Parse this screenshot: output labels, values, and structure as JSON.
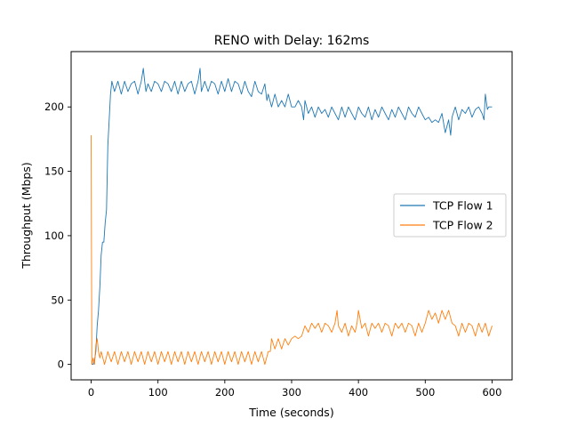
{
  "chart_data": {
    "type": "line",
    "title": "RENO with Delay: 162ms",
    "xlabel": "Time (seconds)",
    "ylabel": "Throughput (Mbps)",
    "xlim": [
      -30,
      630
    ],
    "ylim": [
      -12,
      243
    ],
    "xticks": [
      0,
      100,
      200,
      300,
      400,
      500,
      600
    ],
    "yticks": [
      0,
      50,
      100,
      150,
      200
    ],
    "grid": false,
    "legend_position": "center-right",
    "series": [
      {
        "name": "TCP Flow 1",
        "color": "#1f77b4",
        "x": [
          1,
          3,
          5,
          7,
          9,
          11,
          13,
          15,
          17,
          19,
          21,
          23,
          25,
          27,
          29,
          31,
          35,
          40,
          45,
          50,
          55,
          60,
          65,
          70,
          75,
          78,
          80,
          82,
          85,
          90,
          95,
          100,
          105,
          110,
          115,
          120,
          125,
          130,
          135,
          140,
          145,
          150,
          155,
          160,
          163,
          165,
          170,
          175,
          180,
          185,
          190,
          195,
          200,
          205,
          210,
          215,
          220,
          225,
          230,
          235,
          240,
          245,
          250,
          255,
          260,
          263,
          265,
          270,
          275,
          280,
          285,
          290,
          295,
          300,
          305,
          310,
          315,
          318,
          320,
          325,
          330,
          335,
          340,
          345,
          350,
          355,
          360,
          365,
          370,
          375,
          380,
          385,
          390,
          395,
          400,
          405,
          410,
          415,
          420,
          425,
          430,
          435,
          440,
          445,
          450,
          455,
          460,
          465,
          470,
          475,
          480,
          485,
          490,
          495,
          500,
          505,
          510,
          515,
          520,
          525,
          530,
          535,
          538,
          540,
          545,
          550,
          555,
          560,
          565,
          570,
          575,
          580,
          585,
          588,
          590,
          593,
          595,
          600
        ],
        "y": [
          0,
          0,
          3,
          10,
          30,
          42,
          60,
          85,
          95,
          95,
          110,
          120,
          170,
          190,
          210,
          220,
          212,
          220,
          210,
          220,
          212,
          218,
          220,
          210,
          220,
          230,
          220,
          212,
          218,
          212,
          220,
          218,
          212,
          220,
          218,
          212,
          220,
          210,
          220,
          212,
          218,
          220,
          210,
          220,
          230,
          212,
          220,
          212,
          220,
          218,
          210,
          220,
          212,
          222,
          212,
          220,
          218,
          210,
          220,
          212,
          208,
          220,
          212,
          210,
          218,
          205,
          210,
          200,
          210,
          200,
          205,
          200,
          210,
          200,
          200,
          205,
          200,
          190,
          205,
          195,
          200,
          192,
          200,
          195,
          198,
          192,
          200,
          195,
          190,
          200,
          192,
          200,
          195,
          190,
          200,
          195,
          192,
          200,
          190,
          198,
          192,
          200,
          195,
          190,
          198,
          192,
          200,
          195,
          190,
          200,
          195,
          192,
          200,
          195,
          190,
          192,
          188,
          190,
          188,
          195,
          180,
          190,
          178,
          192,
          200,
          190,
          198,
          195,
          200,
          192,
          198,
          200,
          195,
          190,
          210,
          198,
          200,
          200
        ]
      },
      {
        "name": "TCP Flow 2",
        "color": "#ff7f0e",
        "x": [
          0,
          1,
          2,
          3,
          5,
          7,
          9,
          11,
          13,
          15,
          20,
          25,
          30,
          35,
          40,
          45,
          50,
          55,
          60,
          65,
          70,
          75,
          80,
          85,
          90,
          95,
          100,
          105,
          110,
          115,
          120,
          125,
          130,
          135,
          140,
          145,
          150,
          155,
          160,
          165,
          170,
          175,
          180,
          185,
          190,
          195,
          200,
          205,
          210,
          215,
          220,
          225,
          230,
          235,
          240,
          245,
          250,
          255,
          260,
          265,
          268,
          270,
          275,
          280,
          285,
          290,
          295,
          300,
          305,
          310,
          315,
          320,
          325,
          330,
          335,
          340,
          345,
          350,
          355,
          360,
          365,
          368,
          370,
          375,
          380,
          385,
          390,
          395,
          398,
          400,
          405,
          410,
          415,
          420,
          425,
          430,
          435,
          440,
          445,
          450,
          455,
          460,
          465,
          470,
          475,
          480,
          485,
          490,
          495,
          500,
          505,
          510,
          515,
          520,
          525,
          530,
          535,
          540,
          545,
          550,
          555,
          560,
          565,
          570,
          575,
          580,
          585,
          590,
          595,
          600
        ],
        "y": [
          178,
          0,
          2,
          5,
          0,
          15,
          20,
          10,
          5,
          10,
          0,
          10,
          2,
          10,
          0,
          10,
          2,
          10,
          0,
          10,
          2,
          10,
          0,
          10,
          2,
          10,
          0,
          10,
          2,
          10,
          0,
          10,
          2,
          10,
          0,
          10,
          2,
          10,
          0,
          10,
          2,
          10,
          0,
          10,
          2,
          10,
          0,
          10,
          2,
          10,
          0,
          10,
          2,
          10,
          0,
          10,
          2,
          10,
          0,
          10,
          10,
          20,
          12,
          20,
          12,
          20,
          15,
          20,
          22,
          20,
          22,
          30,
          25,
          32,
          28,
          32,
          25,
          32,
          30,
          25,
          32,
          42,
          30,
          25,
          32,
          22,
          30,
          25,
          32,
          42,
          28,
          32,
          22,
          32,
          28,
          32,
          25,
          32,
          30,
          22,
          32,
          28,
          32,
          25,
          32,
          30,
          22,
          32,
          25,
          32,
          42,
          35,
          40,
          32,
          42,
          35,
          42,
          32,
          30,
          22,
          32,
          25,
          32,
          30,
          22,
          32,
          25,
          32,
          22,
          30
        ]
      }
    ]
  }
}
